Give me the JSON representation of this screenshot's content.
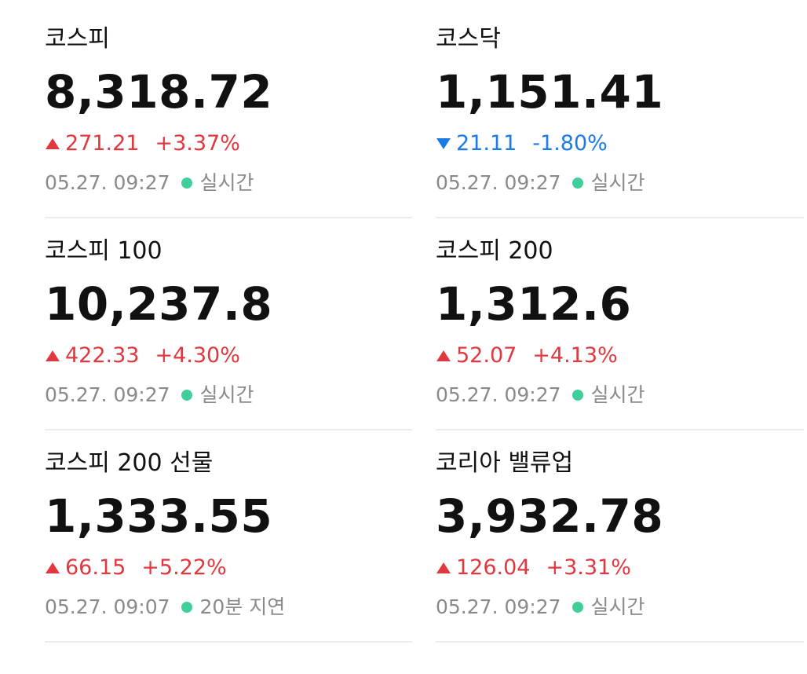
{
  "indices": [
    {
      "name": "코스피",
      "value": "8,318.72",
      "direction": "up",
      "change": "271.21",
      "percent": "+3.37%",
      "time": "05.27. 09:27",
      "status": "실시간"
    },
    {
      "name": "코스닥",
      "value": "1,151.41",
      "direction": "down",
      "change": "21.11",
      "percent": "-1.80%",
      "time": "05.27. 09:27",
      "status": "실시간"
    },
    {
      "name": "코스피 100",
      "value": "10,237.8",
      "direction": "up",
      "change": "422.33",
      "percent": "+4.30%",
      "time": "05.27. 09:27",
      "status": "실시간"
    },
    {
      "name": "코스피 200",
      "value": "1,312.6",
      "direction": "up",
      "change": "52.07",
      "percent": "+4.13%",
      "time": "05.27. 09:27",
      "status": "실시간"
    },
    {
      "name": "코스피 200 선물",
      "value": "1,333.55",
      "direction": "up",
      "change": "66.15",
      "percent": "+5.22%",
      "time": "05.27. 09:07",
      "status": "20분 지연"
    },
    {
      "name": "코리아 밸류업",
      "value": "3,932.78",
      "direction": "up",
      "change": "126.04",
      "percent": "+3.31%",
      "time": "05.27. 09:27",
      "status": "실시간"
    }
  ]
}
